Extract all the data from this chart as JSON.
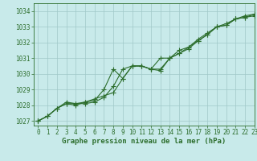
{
  "title": "Graphe pression niveau de la mer (hPa)",
  "background_color": "#c8eaea",
  "grid_color": "#a0c8c8",
  "line_color": "#2d6e2d",
  "xlim": [
    -0.5,
    23
  ],
  "ylim": [
    1026.7,
    1034.5
  ],
  "yticks": [
    1027,
    1028,
    1029,
    1030,
    1031,
    1032,
    1033,
    1034
  ],
  "xticks": [
    0,
    1,
    2,
    3,
    4,
    5,
    6,
    7,
    8,
    9,
    10,
    11,
    12,
    13,
    14,
    15,
    16,
    17,
    18,
    19,
    20,
    21,
    22,
    23
  ],
  "series1_x": [
    0,
    1,
    2,
    3,
    4,
    5,
    6,
    7,
    8,
    9,
    10,
    11,
    12,
    13,
    14,
    15,
    16,
    17,
    18,
    19,
    20,
    21,
    22,
    23
  ],
  "series1_y": [
    1027.0,
    1027.3,
    1027.8,
    1028.1,
    1028.1,
    1028.1,
    1028.2,
    1028.5,
    1029.2,
    1030.3,
    1030.5,
    1030.5,
    1030.3,
    1030.2,
    1031.0,
    1031.3,
    1031.7,
    1032.1,
    1032.5,
    1033.0,
    1033.1,
    1033.5,
    1033.6,
    1033.7
  ],
  "series2_x": [
    0,
    1,
    2,
    3,
    4,
    5,
    6,
    7,
    8,
    9,
    10,
    11,
    12,
    13,
    14,
    15,
    16,
    17,
    18,
    19,
    20,
    21,
    22,
    23
  ],
  "series2_y": [
    1027.0,
    1027.3,
    1027.8,
    1028.1,
    1028.0,
    1028.2,
    1028.3,
    1029.0,
    1030.3,
    1029.7,
    1030.5,
    1030.5,
    1030.3,
    1031.0,
    1031.0,
    1031.5,
    1031.7,
    1032.2,
    1032.6,
    1033.0,
    1033.2,
    1033.5,
    1033.7,
    1033.8
  ],
  "series3_x": [
    0,
    1,
    2,
    3,
    4,
    5,
    6,
    7,
    8,
    9,
    10,
    11,
    12,
    13,
    14,
    15,
    16,
    17,
    18,
    19,
    20,
    21,
    22,
    23
  ],
  "series3_y": [
    1027.0,
    1027.3,
    1027.8,
    1028.2,
    1028.1,
    1028.2,
    1028.4,
    1028.6,
    1028.8,
    1029.7,
    1030.5,
    1030.5,
    1030.3,
    1030.3,
    1031.0,
    1031.3,
    1031.6,
    1032.1,
    1032.5,
    1033.0,
    1033.1,
    1033.5,
    1033.6,
    1033.8
  ],
  "title_fontsize": 6.5,
  "tick_fontsize": 5.5,
  "marker_size": 2.0,
  "line_width": 0.8
}
